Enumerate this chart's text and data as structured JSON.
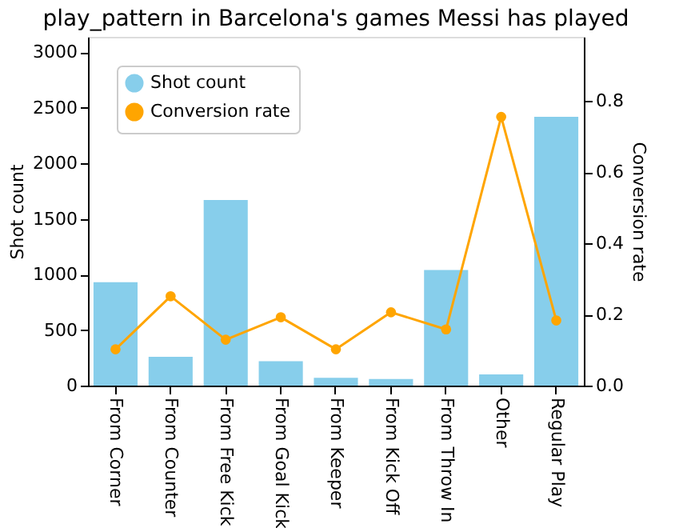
{
  "chart_data": {
    "type": "bar",
    "title": "play_pattern in Barcelona's games Messi has played",
    "categories": [
      "From Corner",
      "From Counter",
      "From Free Kick",
      "From Goal Kick",
      "From Keeper",
      "From Kick Off",
      "From Throw In",
      "Other",
      "Regular Play"
    ],
    "series": [
      {
        "name": "Shot count",
        "color": "#87ceeb",
        "values": [
          930,
          260,
          1670,
          220,
          70,
          60,
          1040,
          100,
          2420
        ]
      },
      {
        "name": "Conversion rate",
        "type": "line",
        "axis": "y2",
        "color": "#ffa500",
        "marker": "circle",
        "values": [
          0.102,
          0.251,
          0.129,
          0.192,
          0.102,
          0.206,
          0.158,
          0.755,
          0.183
        ]
      }
    ],
    "ylabel": "Shot count",
    "y2label": "Conversion rate",
    "ylim": [
      0,
      3140
    ],
    "yticks": [
      0,
      500,
      1000,
      1500,
      2000,
      2500,
      3000
    ],
    "y2lim": [
      0,
      0.98
    ],
    "y2ticks": [
      {
        "value": 0,
        "label": "0.0"
      },
      0.2,
      0.4,
      0.6,
      0.8
    ],
    "grid": false,
    "legend": "top left"
  }
}
